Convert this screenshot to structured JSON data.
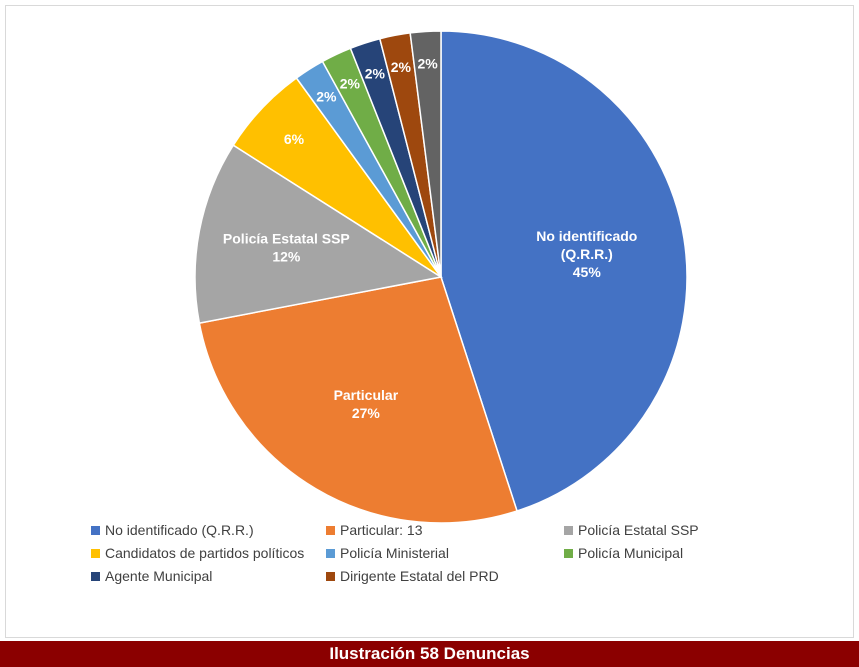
{
  "chart_data": {
    "type": "pie",
    "slices": [
      {
        "name": "No identificado (Q.R.R.)",
        "legend": "No identificado (Q.R.R.)",
        "label_lines": [
          "No identificado",
          "(Q.R.R.)",
          "45%"
        ],
        "value": 45,
        "color": "#4472c4"
      },
      {
        "name": "Particular",
        "legend": "Particular: 13",
        "label_lines": [
          "Particular",
          "27%"
        ],
        "value": 27,
        "color": "#ed7d31"
      },
      {
        "name": "Policía Estatal SSP",
        "legend": "Policía Estatal SSP",
        "label_lines": [
          "Policía Estatal SSP",
          "12%"
        ],
        "value": 12,
        "color": "#a5a5a5"
      },
      {
        "name": "Candidatos de partidos políticos",
        "legend": "Candidatos de partidos políticos",
        "label_lines": [
          "6%"
        ],
        "value": 6,
        "color": "#ffc000"
      },
      {
        "name": "Policía Ministerial",
        "legend": "Policía Ministerial",
        "label_lines": [
          "2%"
        ],
        "value": 2,
        "color": "#5b9bd5"
      },
      {
        "name": "Policía Municipal",
        "legend": "Policía Municipal",
        "label_lines": [
          "2%"
        ],
        "value": 2,
        "color": "#70ad47"
      },
      {
        "name": "Agente Municipal",
        "legend": "Agente Municipal",
        "label_lines": [
          "2%"
        ],
        "value": 2,
        "color": "#264478"
      },
      {
        "name": "Dirigente Estatal del PRD",
        "legend": "Dirigente Estatal del PRD",
        "label_lines": [
          "2%"
        ],
        "value": 2,
        "color": "#9e480e"
      },
      {
        "name": "",
        "legend": "",
        "label_lines": [
          "2%"
        ],
        "value": 2,
        "color": "#636363"
      }
    ],
    "legend_position": "bottom"
  },
  "caption": "Ilustración 58 Denuncias"
}
